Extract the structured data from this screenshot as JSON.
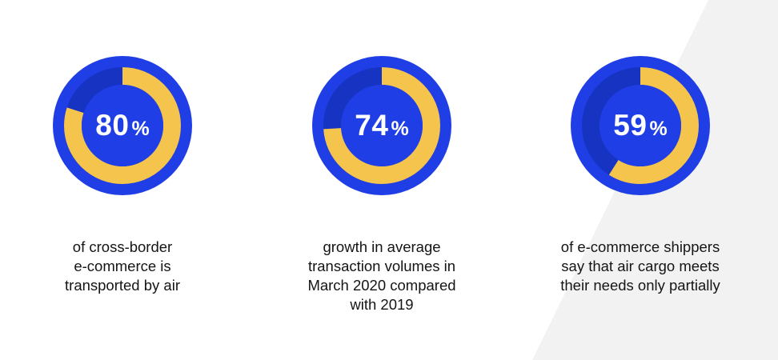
{
  "colors": {
    "ring_outer": "#1f3ee6",
    "ring_track": "#1733c2",
    "ring_inner": "#1f3ee6",
    "progress": "#f4c44c",
    "text_value": "#ffffff",
    "text_caption": "#151515",
    "background_wedge": "#f2f2f2"
  },
  "chart_data": [
    {
      "type": "donut",
      "value": 80,
      "unit": "%",
      "display": "80",
      "max": 100,
      "caption": [
        "of cross-border",
        "e-commerce is",
        "transported by air"
      ]
    },
    {
      "type": "donut",
      "value": 74,
      "unit": "%",
      "display": "74",
      "max": 100,
      "caption": [
        "growth in average",
        "transaction volumes in",
        "March 2020 compared",
        "with 2019"
      ]
    },
    {
      "type": "donut",
      "value": 59,
      "unit": "%",
      "display": "59",
      "max": 100,
      "caption": [
        "of e-commerce shippers",
        "say that air cargo meets",
        "their needs only partially"
      ]
    }
  ]
}
